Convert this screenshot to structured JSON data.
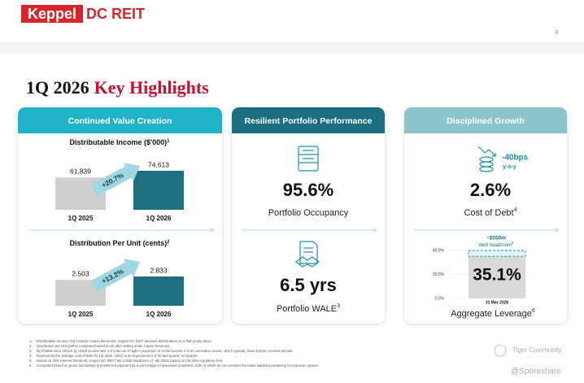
{
  "header": {
    "logo_part1": "Keppel",
    "logo_part2": "DC REIT",
    "page_number": "3"
  },
  "title": {
    "part1": "1Q 2026",
    "part2": "Key Highlights"
  },
  "panels": [
    {
      "heading": "Continued Value Creation",
      "charts": [
        {
          "type": "bar",
          "title": "Distributable Income ($'000)",
          "title_sup": "1",
          "categories": [
            "1Q 2025",
            "1Q 2026"
          ],
          "values": [
            61839,
            74613
          ],
          "value_labels": [
            "61,839",
            "74,613"
          ],
          "colors": [
            "#cfcfcf",
            "#1e6f80"
          ],
          "change": "+20.7%"
        },
        {
          "type": "bar",
          "title": "Distribution Per Unit (cents)",
          "title_sup": "2",
          "categories": [
            "1Q 2025",
            "1Q 2026"
          ],
          "values": [
            2.503,
            2.833
          ],
          "colors": [
            "#cfcfcf",
            "#1e6f80"
          ],
          "change": "+13.2%"
        }
      ]
    },
    {
      "heading": "Resilient Portfolio Performance",
      "metrics": [
        {
          "value": "95.6%",
          "label": "Portfolio Occupancy"
        },
        {
          "value": "6.5 yrs",
          "label": "Portfolio WALE",
          "sup": "3"
        }
      ]
    },
    {
      "heading": "Disciplined Growth",
      "metrics": [
        {
          "value": "2.6%",
          "label": "Cost of Debt",
          "sup": "4",
          "change": "-40bps",
          "change_note": "y-o-y"
        }
      ],
      "chart": {
        "type": "bar",
        "categories": [
          "31 Mar 2026"
        ],
        "values": [
          35.1
        ],
        "value_labels": [
          "35.1%"
        ],
        "color": "#d9d9d9",
        "ylim": [
          0,
          40
        ],
        "yticks": [
          {
            "value": 0,
            "label": "0.0%"
          },
          {
            "value": 20,
            "label": "20.0%"
          },
          {
            "value": 40,
            "label": "40.0%"
          }
        ],
        "grid": true,
        "headroom": "~$550m",
        "headroom_note": "debt headroom",
        "headroom_sup": "5",
        "label": "Aggregate Leverage",
        "label_sup": "6"
      }
    }
  ],
  "footnotes": [
    {
      "n": "1.",
      "text": "Distributable income (DI) includes Capex Reserves. Keppel DC REIT declares distributions on a half-yearly basis."
    },
    {
      "n": "2.",
      "text": "Distribution per Unit (DPU) computed based on DI after setting aside Capex Reserves."
    },
    {
      "n": "3.",
      "text": "By lettable area. WALE by rental income was 4.6 years as a higher proportion of rental income is from colocation assets, which typically have shorter contract periods."
    },
    {
      "n": "4.",
      "text": "Represents the average cost of debt for 1Q 2026, which is an improvement of 20 bps quarter-on-quarter."
    },
    {
      "n": "5.",
      "text": "Based on 40% interest threshold. Keppel DC REIT has a debt headroom of ~$2,000m based on the 50% regulatory limit."
    },
    {
      "n": "6.",
      "text": "Computed based on gross borrowings and deferred payment as a percentage of deposited properties, both of which do not consider the lease liabilities pertaining to extension options."
    }
  ],
  "watermarks": [
    "Tiger Community",
    "@Sporeshare"
  ]
}
